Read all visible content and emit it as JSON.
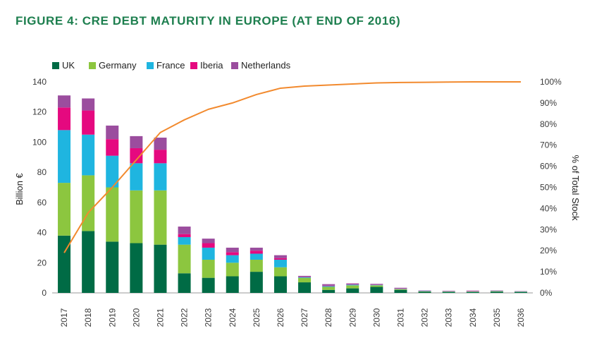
{
  "chart_data": {
    "type": "bar",
    "stacked": true,
    "title": "FIGURE 4: CRE DEBT MATURITY IN EUROPE (AT END OF 2016)",
    "xlabel": "",
    "ylabel": "Billion €",
    "y2label": "% of Total Stock",
    "ylim": [
      0,
      140
    ],
    "y2lim": [
      0,
      100
    ],
    "yticks": [
      "0",
      "20",
      "40",
      "60",
      "80",
      "100",
      "120",
      "140"
    ],
    "y2ticks": [
      "0%",
      "10%",
      "20%",
      "30%",
      "40%",
      "50%",
      "60%",
      "70%",
      "80%",
      "90%",
      "100%"
    ],
    "categories": [
      "2017",
      "2018",
      "2019",
      "2020",
      "2021",
      "2022",
      "2023",
      "2024",
      "2025",
      "2026",
      "2027",
      "2028",
      "2029",
      "2030",
      "2031",
      "2032",
      "2033",
      "2034",
      "2035",
      "2036"
    ],
    "series": [
      {
        "name": "UK",
        "color": "#006b45",
        "values": [
          38,
          41,
          34,
          33,
          32,
          13,
          10,
          11,
          14,
          11,
          7,
          2,
          3,
          4,
          2,
          0.7,
          0.5,
          0.5,
          0.8,
          0.5
        ]
      },
      {
        "name": "Germany",
        "color": "#8cc63f",
        "values": [
          35,
          37,
          36,
          35,
          36,
          19,
          12,
          9,
          8,
          6,
          3,
          2,
          2,
          1,
          0.5,
          0.3,
          0.3,
          0.3,
          0.3,
          0.2
        ]
      },
      {
        "name": "France",
        "color": "#1fb5e0",
        "values": [
          35,
          27,
          21,
          18,
          18,
          5,
          8,
          5,
          4,
          5,
          0.5,
          0.5,
          0.5,
          0.3,
          0.2,
          0.2,
          0.2,
          0.2,
          0.2,
          0.2
        ]
      },
      {
        "name": "Iberia",
        "color": "#e5097f",
        "values": [
          15,
          16,
          11,
          10,
          9,
          2,
          3,
          2,
          2,
          1,
          0.3,
          0.3,
          0.3,
          0.2,
          0.2,
          0.1,
          0.1,
          0.2,
          0.1,
          0.1
        ]
      },
      {
        "name": "Netherlands",
        "color": "#9b4d9e",
        "values": [
          8,
          8,
          9,
          8,
          8,
          5,
          3,
          3,
          2,
          2,
          0.5,
          1,
          0.5,
          0.5,
          0.5,
          0.3,
          0.3,
          0.3,
          0.2,
          0.2
        ]
      }
    ],
    "line": {
      "name": "% of Total Stock",
      "color": "#f28a2e",
      "values": [
        19,
        38,
        50,
        63,
        76,
        82,
        87,
        90,
        94,
        97,
        98,
        98.5,
        99,
        99.5,
        99.7,
        99.8,
        99.9,
        100,
        100,
        100
      ]
    },
    "legend_position": "top-left"
  }
}
